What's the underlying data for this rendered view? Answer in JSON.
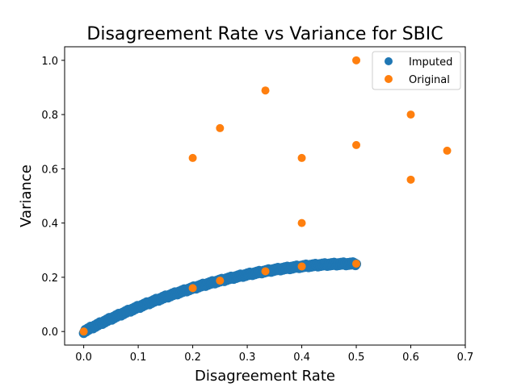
{
  "chart_data": {
    "type": "scatter",
    "title": "Disagreement Rate vs Variance for SBIC",
    "xlabel": "Disagreement Rate",
    "ylabel": "Variance",
    "xlim": [
      -0.035,
      0.7
    ],
    "ylim": [
      -0.05,
      1.05
    ],
    "x_ticks": [
      0.0,
      0.1,
      0.2,
      0.3,
      0.4,
      0.5,
      0.6,
      0.7
    ],
    "y_ticks": [
      0.0,
      0.2,
      0.4,
      0.6,
      0.8,
      1.0
    ],
    "grid": false,
    "legend": "top-right",
    "series": [
      {
        "name": "Imputed",
        "color": "#1f77b4",
        "curve": "y = x(1-x)",
        "x_range": [
          0.0,
          0.5
        ]
      },
      {
        "name": "Original",
        "color": "#ff7f0e",
        "points": [
          [
            0.0,
            0.0
          ],
          [
            0.2,
            0.16
          ],
          [
            0.25,
            0.1875
          ],
          [
            0.3333,
            0.2222
          ],
          [
            0.4,
            0.24
          ],
          [
            0.5,
            0.25
          ],
          [
            0.2,
            0.64
          ],
          [
            0.25,
            0.75
          ],
          [
            0.3333,
            0.8889
          ],
          [
            0.4,
            0.4
          ],
          [
            0.4,
            0.64
          ],
          [
            0.5,
            0.6875
          ],
          [
            0.5,
            1.0
          ],
          [
            0.6,
            0.56
          ],
          [
            0.6,
            0.8
          ],
          [
            0.6667,
            0.6667
          ]
        ]
      }
    ]
  }
}
